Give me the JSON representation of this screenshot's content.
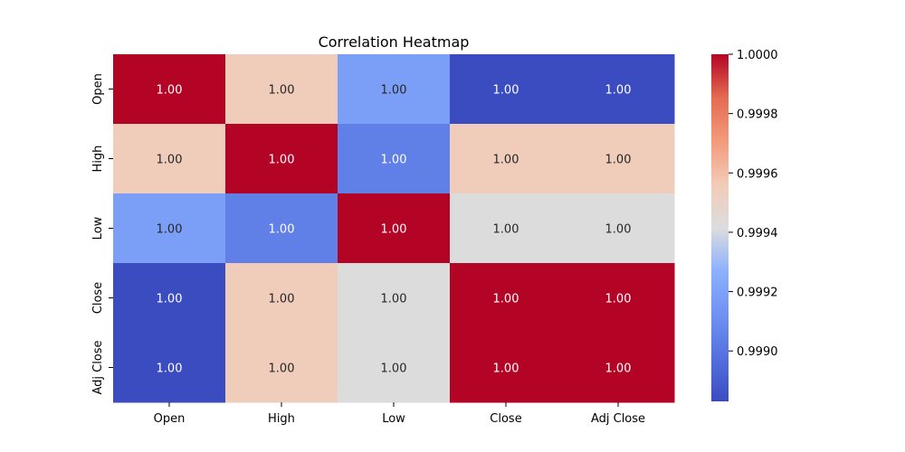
{
  "chart_data": {
    "type": "heatmap",
    "title": "Correlation Heatmap",
    "xlabel": "",
    "ylabel": "",
    "rows": [
      "Open",
      "High",
      "Low",
      "Close",
      "Adj Close"
    ],
    "columns": [
      "Open",
      "High",
      "Low",
      "Close",
      "Adj Close"
    ],
    "values": [
      [
        1.0,
        0.99955,
        0.99918,
        0.99883,
        0.99883
      ],
      [
        0.99955,
        1.0,
        0.99904,
        0.99955,
        0.99955
      ],
      [
        0.99918,
        0.99904,
        1.0,
        0.99942,
        0.99942
      ],
      [
        0.99883,
        0.99955,
        0.99942,
        1.0,
        1.0
      ],
      [
        0.99883,
        0.99955,
        0.99942,
        1.0,
        1.0
      ]
    ],
    "annotations": [
      [
        "1.00",
        "1.00",
        "1.00",
        "1.00",
        "1.00"
      ],
      [
        "1.00",
        "1.00",
        "1.00",
        "1.00",
        "1.00"
      ],
      [
        "1.00",
        "1.00",
        "1.00",
        "1.00",
        "1.00"
      ],
      [
        "1.00",
        "1.00",
        "1.00",
        "1.00",
        "1.00"
      ],
      [
        "1.00",
        "1.00",
        "1.00",
        "1.00",
        "1.00"
      ]
    ],
    "colormap": "coolwarm",
    "colorbar": {
      "range": [
        0.99883,
        1.0
      ],
      "ticks": [
        0.999,
        0.9992,
        0.9994,
        0.9996,
        0.9998,
        1.0
      ],
      "tick_labels": [
        "0.9990",
        "0.9992",
        "0.9994",
        "0.9996",
        "0.9998",
        "1.0000"
      ]
    },
    "grid": false,
    "legend": "colorbar-right"
  }
}
